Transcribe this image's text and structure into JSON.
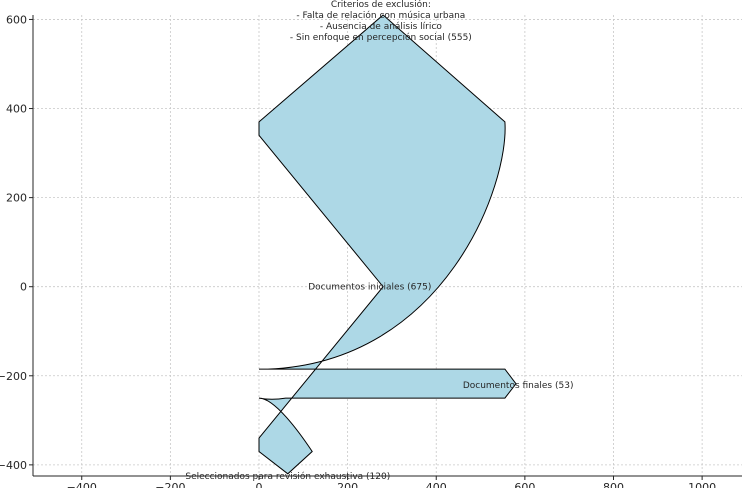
{
  "chart_data": {
    "type": "sankey",
    "xlim": [
      -510,
      1090
    ],
    "ylim": [
      -425,
      610
    ],
    "xticks": [
      -400,
      -200,
      0,
      200,
      400,
      600,
      800,
      1000
    ],
    "yticks": [
      -400,
      -200,
      0,
      200,
      400,
      600
    ],
    "grid": true,
    "flows": [
      {
        "label": "Documentos iniciales (675)",
        "value": 675
      },
      {
        "label": "Criterios de exclusión:\n- Falta de relación con música urbana\n- Ausencia de análisis lírico\n- Sin enfoque en percepción social (555)",
        "value": 555
      },
      {
        "label": "Documentos finales (53)",
        "value": 53
      },
      {
        "label": "Seleccionados para revisión exhaustiva (120)",
        "value": 120
      }
    ],
    "fill_color": "#add8e6",
    "edge_color": "#000000"
  }
}
